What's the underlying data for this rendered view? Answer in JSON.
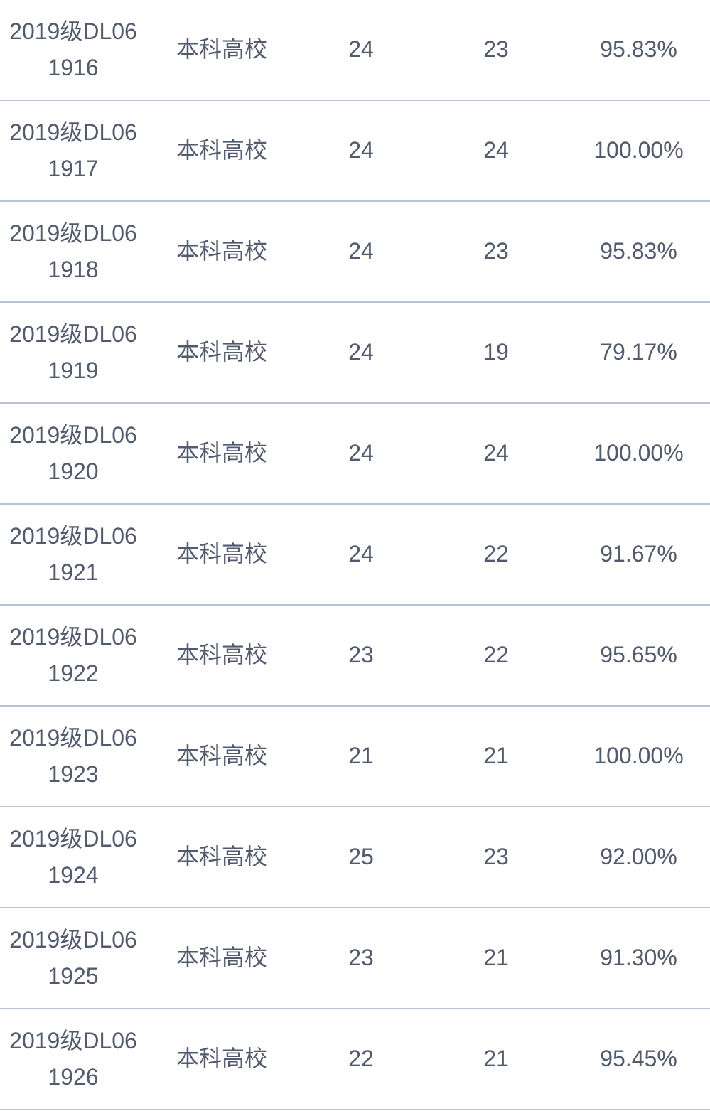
{
  "theme": {
    "background_color": "#ffffff",
    "text_color": "#515a6e",
    "divider_color": "#b8c3dc"
  },
  "table": {
    "rows": [
      {
        "class_name": [
          "2019级DL06",
          "1916"
        ],
        "school_type": "本科高校",
        "total": "24",
        "passed": "23",
        "rate": "95.83%"
      },
      {
        "class_name": [
          "2019级DL06",
          "1917"
        ],
        "school_type": "本科高校",
        "total": "24",
        "passed": "24",
        "rate": "100.00%"
      },
      {
        "class_name": [
          "2019级DL06",
          "1918"
        ],
        "school_type": "本科高校",
        "total": "24",
        "passed": "23",
        "rate": "95.83%"
      },
      {
        "class_name": [
          "2019级DL06",
          "1919"
        ],
        "school_type": "本科高校",
        "total": "24",
        "passed": "19",
        "rate": "79.17%"
      },
      {
        "class_name": [
          "2019级DL06",
          "1920"
        ],
        "school_type": "本科高校",
        "total": "24",
        "passed": "24",
        "rate": "100.00%"
      },
      {
        "class_name": [
          "2019级DL06",
          "1921"
        ],
        "school_type": "本科高校",
        "total": "24",
        "passed": "22",
        "rate": "91.67%"
      },
      {
        "class_name": [
          "2019级DL06",
          "1922"
        ],
        "school_type": "本科高校",
        "total": "23",
        "passed": "22",
        "rate": "95.65%"
      },
      {
        "class_name": [
          "2019级DL06",
          "1923"
        ],
        "school_type": "本科高校",
        "total": "21",
        "passed": "21",
        "rate": "100.00%"
      },
      {
        "class_name": [
          "2019级DL06",
          "1924"
        ],
        "school_type": "本科高校",
        "total": "25",
        "passed": "23",
        "rate": "92.00%"
      },
      {
        "class_name": [
          "2019级DL06",
          "1925"
        ],
        "school_type": "本科高校",
        "total": "23",
        "passed": "21",
        "rate": "91.30%"
      },
      {
        "class_name": [
          "2019级DL06",
          "1926"
        ],
        "school_type": "本科高校",
        "total": "22",
        "passed": "21",
        "rate": "95.45%"
      }
    ]
  }
}
